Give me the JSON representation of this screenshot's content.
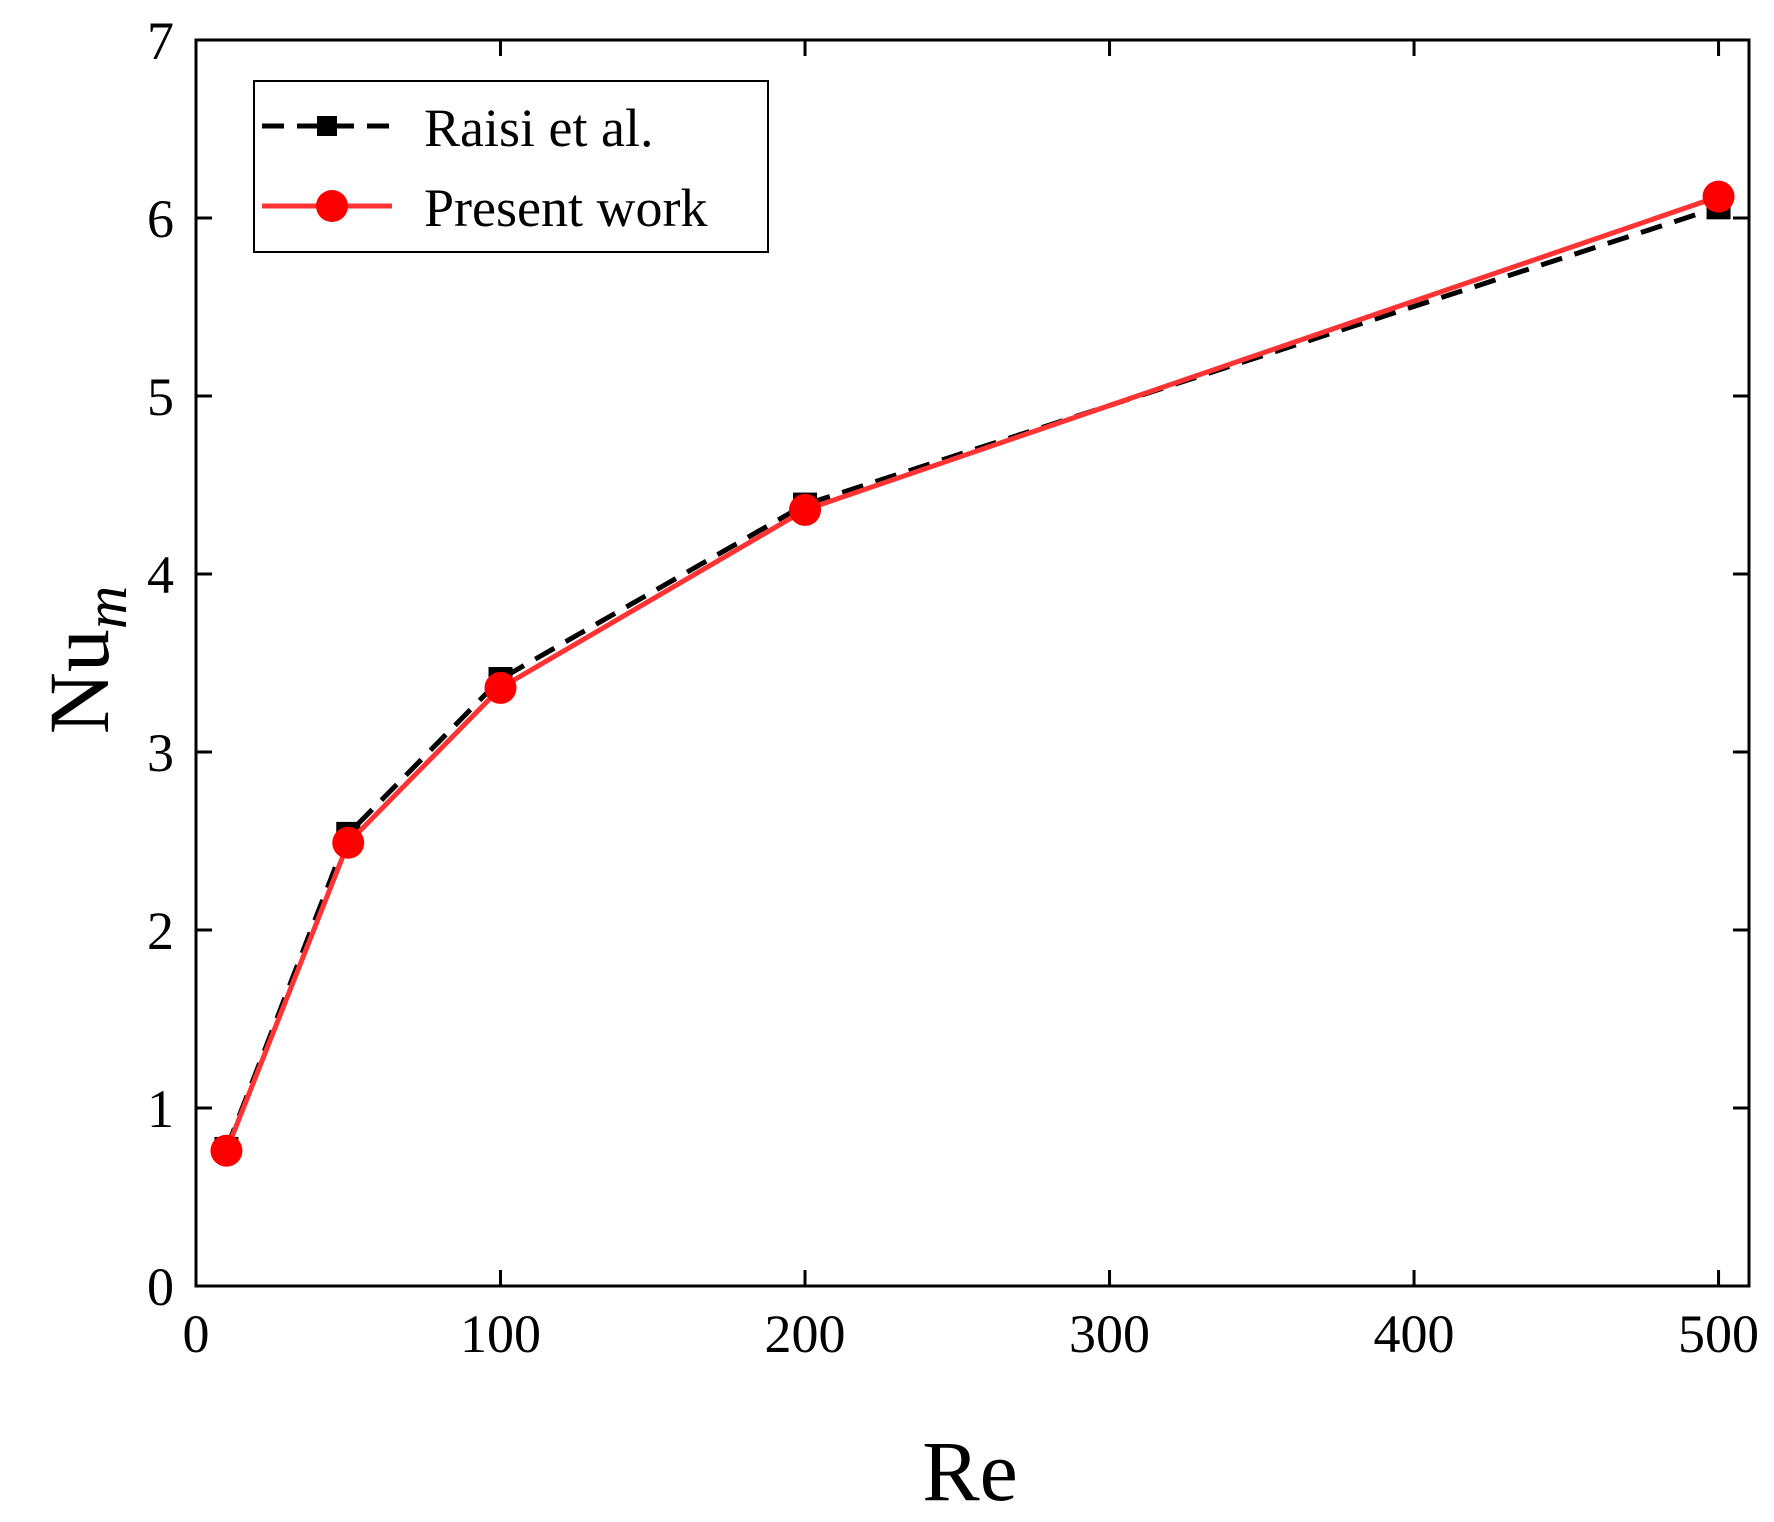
{
  "chart_data": {
    "type": "line",
    "title": "",
    "xlabel": "Re",
    "ylabel": {
      "main": "Nu",
      "subscript": "m"
    },
    "xlim": [
      0,
      510
    ],
    "ylim": [
      0,
      7
    ],
    "xticks": [
      0,
      100,
      200,
      300,
      400,
      500
    ],
    "yticks": [
      0,
      1,
      2,
      3,
      4,
      5,
      6,
      7
    ],
    "grid": false,
    "legend_position": "top-left",
    "series": [
      {
        "name": "Raisi et al.",
        "color": "#000000",
        "line_style": "dashed",
        "marker": "square",
        "x": [
          10,
          50,
          100,
          200,
          500
        ],
        "y": [
          0.77,
          2.54,
          3.41,
          4.39,
          6.06
        ]
      },
      {
        "name": "Present work",
        "color": "#ff3333",
        "marker_color": "#ff0000",
        "line_style": "solid",
        "marker": "circle",
        "x": [
          10,
          50,
          100,
          200,
          500
        ],
        "y": [
          0.76,
          2.49,
          3.36,
          4.36,
          6.12
        ]
      }
    ]
  }
}
